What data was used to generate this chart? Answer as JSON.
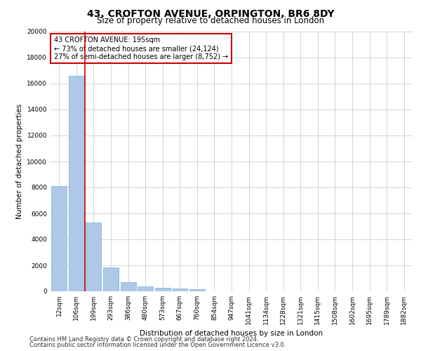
{
  "title_line1": "43, CROFTON AVENUE, ORPINGTON, BR6 8DY",
  "title_line2": "Size of property relative to detached houses in London",
  "xlabel": "Distribution of detached houses by size in London",
  "ylabel": "Number of detached properties",
  "categories": [
    "12sqm",
    "106sqm",
    "199sqm",
    "293sqm",
    "386sqm",
    "480sqm",
    "573sqm",
    "667sqm",
    "760sqm",
    "854sqm",
    "947sqm",
    "1041sqm",
    "1134sqm",
    "1228sqm",
    "1321sqm",
    "1415sqm",
    "1508sqm",
    "1602sqm",
    "1695sqm",
    "1789sqm",
    "1882sqm"
  ],
  "values": [
    8100,
    16600,
    5300,
    1850,
    680,
    380,
    280,
    200,
    160,
    0,
    0,
    0,
    0,
    0,
    0,
    0,
    0,
    0,
    0,
    0,
    0
  ],
  "bar_color": "#aec8e8",
  "bar_edge_color": "#7aafd4",
  "property_line_color": "#cc0000",
  "annotation_text": "43 CROFTON AVENUE: 195sqm\n← 73% of detached houses are smaller (24,124)\n27% of semi-detached houses are larger (8,752) →",
  "annotation_box_color": "#cc0000",
  "ylim": [
    0,
    20000
  ],
  "yticks": [
    0,
    2000,
    4000,
    6000,
    8000,
    10000,
    12000,
    14000,
    16000,
    18000,
    20000
  ],
  "grid_color": "#cccccc",
  "background_color": "#ffffff",
  "footnote1": "Contains HM Land Registry data © Crown copyright and database right 2024.",
  "footnote2": "Contains public sector information licensed under the Open Government Licence v3.0.",
  "title_fontsize": 10,
  "subtitle_fontsize": 8.5,
  "axis_label_fontsize": 7.5,
  "tick_fontsize": 6.5,
  "annotation_fontsize": 7,
  "footnote_fontsize": 6
}
